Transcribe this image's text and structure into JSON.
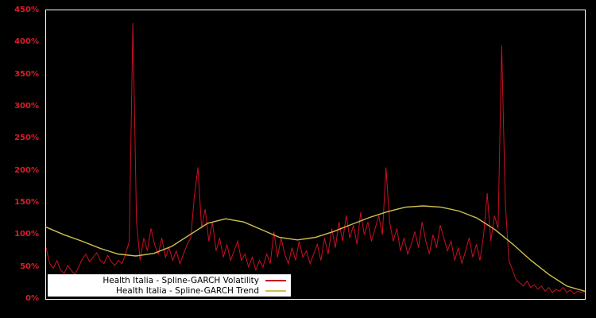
{
  "chart_data": {
    "type": "line",
    "title": "",
    "xlabel": "",
    "ylabel": "",
    "y_unit": "%",
    "ylim": [
      0,
      450
    ],
    "grid": false,
    "legend_position": "bottom-left",
    "yticks": [
      {
        "value": 450,
        "label": "450%"
      },
      {
        "value": 400,
        "label": "400%"
      },
      {
        "value": 350,
        "label": "350%"
      },
      {
        "value": 300,
        "label": "300%"
      },
      {
        "value": 250,
        "label": "250%"
      },
      {
        "value": 200,
        "label": "200%"
      },
      {
        "value": 150,
        "label": "150%"
      },
      {
        "value": 100,
        "label": "100%"
      },
      {
        "value": 50,
        "label": "50%"
      },
      {
        "value": 0,
        "label": "0%"
      }
    ],
    "series": [
      {
        "id": "volatility-line",
        "name": "Health Italia - Spline-GARCH Volatility",
        "color": "#cc1022",
        "values": [
          80,
          55,
          48,
          60,
          45,
          40,
          52,
          44,
          38,
          50,
          62,
          70,
          58,
          65,
          72,
          60,
          55,
          68,
          58,
          52,
          60,
          55,
          70,
          90,
          430,
          120,
          60,
          95,
          75,
          110,
          85,
          70,
          95,
          65,
          80,
          60,
          75,
          55,
          70,
          85,
          95,
          160,
          205,
          110,
          140,
          90,
          120,
          75,
          95,
          65,
          85,
          60,
          75,
          90,
          60,
          70,
          50,
          65,
          45,
          60,
          50,
          70,
          55,
          105,
          65,
          95,
          70,
          55,
          80,
          60,
          90,
          65,
          75,
          55,
          70,
          85,
          60,
          95,
          70,
          110,
          80,
          120,
          90,
          130,
          95,
          115,
          85,
          135,
          100,
          120,
          90,
          110,
          130,
          100,
          205,
          120,
          90,
          110,
          75,
          95,
          70,
          85,
          105,
          80,
          120,
          90,
          70,
          100,
          80,
          115,
          95,
          75,
          90,
          60,
          80,
          55,
          75,
          95,
          65,
          85,
          60,
          100,
          165,
          90,
          130,
          110,
          395,
          150,
          60,
          45,
          30,
          25,
          20,
          28,
          18,
          22,
          15,
          20,
          12,
          18,
          10,
          15,
          12,
          18,
          10,
          14,
          8,
          12,
          10,
          12
        ]
      },
      {
        "id": "trend-line",
        "name": "Health Italia - Spline-GARCH Trend",
        "color": "#d0c050",
        "values": [
          112,
          100,
          90,
          79,
          70,
          67,
          71,
          82,
          100,
          118,
          125,
          120,
          108,
          96,
          92,
          96,
          105,
          116,
          127,
          136,
          143,
          145,
          143,
          137,
          126,
          108,
          85,
          60,
          38,
          20,
          12
        ]
      }
    ]
  },
  "colors": {
    "background": "#000000",
    "plot_border": "#ffffff",
    "axis_label": "#dd1c2a",
    "legend_background": "#ffffff",
    "legend_text": "#000000"
  }
}
